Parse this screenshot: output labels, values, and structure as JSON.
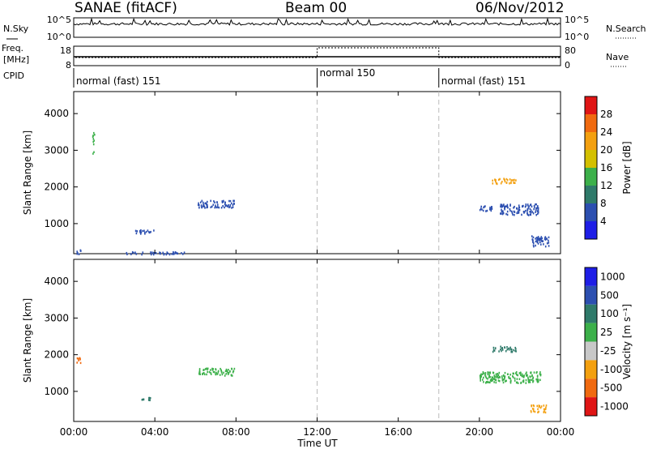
{
  "header": {
    "site": "SANAE (fitACF)",
    "beam": "Beam 00",
    "date": "06/Nov/2012"
  },
  "sidebar": {
    "nsky_label": "N.Sky",
    "nsky_ticks": [
      "10^5",
      "10^0"
    ],
    "freq_label_1": "Freq.",
    "freq_label_2": "[MHz]",
    "freq_ticks": [
      "18",
      "8"
    ],
    "cpid_label": "CPID",
    "nsearch_label": "N.Search",
    "nave_label": "Nave",
    "nave_ticks": [
      "80",
      "0"
    ]
  },
  "cpid_segments": [
    {
      "label": "normal (fast) 151",
      "start_h": 0,
      "end_h": 12
    },
    {
      "label": "normal 150",
      "start_h": 12,
      "end_h": 18
    },
    {
      "label": "normal (fast) 151",
      "start_h": 18,
      "end_h": 24
    }
  ],
  "chart_data": [
    {
      "type": "heatmap",
      "panel": "power",
      "ylabel": "Slant Range [km]",
      "ylim": [
        180,
        4600
      ],
      "xlim": [
        0,
        24
      ],
      "yticks": [
        1000,
        2000,
        3000,
        4000
      ],
      "colorbar_label": "Power [dB]",
      "colorbar_ticks": [
        "4",
        "8",
        "12",
        "16",
        "20",
        "24",
        "28"
      ],
      "colorbar_colors": [
        "#1e1ee6",
        "#2c4fb0",
        "#2f7a6a",
        "#3cb04a",
        "#d4c000",
        "#f3a010",
        "#f06a10",
        "#e01515"
      ],
      "echo_regions": [
        {
          "x": [
            0.1,
            0.4
          ],
          "y": [
            180,
            300
          ],
          "value": 4
        },
        {
          "x": [
            0.9,
            1.0
          ],
          "y": [
            2900,
            3500
          ],
          "value": 12
        },
        {
          "x": [
            2.5,
            5.5
          ],
          "y": [
            180,
            250
          ],
          "value": 6
        },
        {
          "x": [
            3.0,
            4.0
          ],
          "y": [
            750,
            850
          ],
          "value": 4
        },
        {
          "x": [
            6.1,
            7.9
          ],
          "y": [
            1450,
            1650
          ],
          "value": 6
        },
        {
          "x": [
            20.0,
            20.6
          ],
          "y": [
            1350,
            1500
          ],
          "value": 4
        },
        {
          "x": [
            20.6,
            21.8
          ],
          "y": [
            2100,
            2250
          ],
          "value": 20
        },
        {
          "x": [
            21.0,
            22.9
          ],
          "y": [
            1250,
            1550
          ],
          "value": 6
        },
        {
          "x": [
            22.5,
            23.4
          ],
          "y": [
            400,
            700
          ],
          "value": 6
        }
      ]
    },
    {
      "type": "heatmap",
      "panel": "velocity",
      "ylabel": "Slant Range [km]",
      "ylim": [
        180,
        4600
      ],
      "xlim": [
        0,
        24
      ],
      "yticks": [
        1000,
        2000,
        3000,
        4000
      ],
      "colorbar_label": "Velocity [m s⁻¹]",
      "colorbar_ticks": [
        "1000",
        "500",
        "100",
        "25",
        "-25",
        "-100",
        "-500",
        "-1000"
      ],
      "colorbar_colors": [
        "#1e1ee6",
        "#2c4fb0",
        "#2f7a6a",
        "#3cb04a",
        "#c8c8c8",
        "#f3a010",
        "#f06a10",
        "#e01515"
      ],
      "echo_regions": [
        {
          "x": [
            0.1,
            0.4
          ],
          "y": [
            1800,
            1950
          ],
          "value": -500
        },
        {
          "x": [
            3.3,
            4.0
          ],
          "y": [
            780,
            850
          ],
          "value": 100
        },
        {
          "x": [
            6.1,
            7.9
          ],
          "y": [
            1450,
            1650
          ],
          "value": 0
        },
        {
          "x": [
            20.0,
            23.0
          ],
          "y": [
            1250,
            1550
          ],
          "value": 0
        },
        {
          "x": [
            20.6,
            21.8
          ],
          "y": [
            2100,
            2250
          ],
          "value": 100
        },
        {
          "x": [
            22.5,
            23.3
          ],
          "y": [
            450,
            650
          ],
          "value": -100
        }
      ]
    }
  ],
  "x_axis": {
    "label": "Time UT",
    "ticks": [
      "00:00",
      "04:00",
      "08:00",
      "12:00",
      "16:00",
      "20:00",
      "00:00"
    ]
  }
}
